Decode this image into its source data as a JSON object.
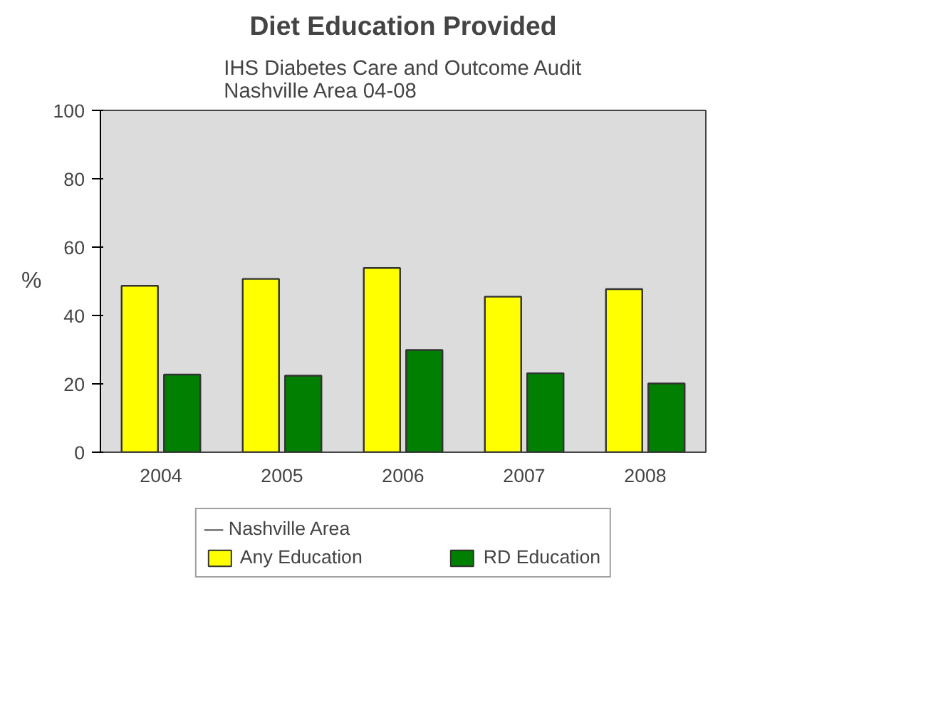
{
  "chart_data": {
    "type": "bar",
    "title": "Diet Education Provided",
    "subtitle": "IHS Diabetes Care and Outcome Audit\nNashville Area 04-08",
    "ylabel": "%",
    "categories": [
      "2004",
      "2005",
      "2006",
      "2007",
      "2008"
    ],
    "series": [
      {
        "name": "Any Education",
        "color": "#ffff00",
        "values": [
          48.7,
          50.7,
          53.9,
          45.5,
          47.7
        ]
      },
      {
        "name": "RD Education",
        "color": "#007f00",
        "values": [
          22.7,
          22.4,
          29.9,
          23.1,
          20.1
        ]
      }
    ],
    "legend_title": "— Nashville Area",
    "legend": "bottom",
    "ylim": [
      0,
      100
    ],
    "yticks": [
      0,
      20,
      40,
      60,
      80,
      100
    ],
    "grid": false
  }
}
